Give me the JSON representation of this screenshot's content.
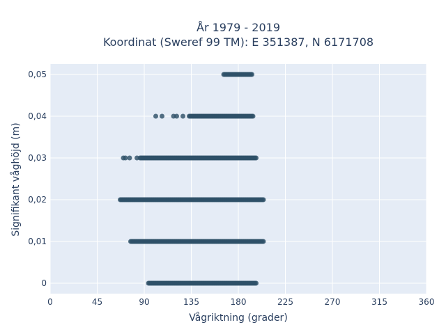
{
  "chart_data": {
    "type": "scatter",
    "title_line1": "År 1979 - 2019",
    "title_line2": "Koordinat (Sweref 99 TM): E 351387, N 6171708",
    "xlabel": "Vågriktning (grader)",
    "ylabel": "Signifikant våghöjd (m)",
    "xlim": [
      0,
      360
    ],
    "ylim": [
      -0.0025,
      0.0525
    ],
    "x_ticks": [
      0,
      45,
      90,
      135,
      180,
      225,
      270,
      315,
      360
    ],
    "x_tick_labels": [
      "0",
      "45",
      "90",
      "135",
      "180",
      "225",
      "270",
      "315",
      "360"
    ],
    "y_ticks": [
      0,
      0.01,
      0.02,
      0.03,
      0.04,
      0.05
    ],
    "y_tick_labels": [
      "0",
      "0,01",
      "0,02",
      "0,03",
      "0,04",
      "0,05"
    ],
    "grid": true,
    "series": [
      {
        "marker_color": "#2e5068",
        "bands": [
          {
            "y": 0.0,
            "x_min": 94,
            "x_max": 197,
            "isolated_x": []
          },
          {
            "y": 0.01,
            "x_min": 77,
            "x_max": 204,
            "isolated_x": []
          },
          {
            "y": 0.02,
            "x_min": 67,
            "x_max": 204,
            "isolated_x": []
          },
          {
            "y": 0.03,
            "x_min": 86,
            "x_max": 197,
            "isolated_x": [
              70,
              72,
              76,
              83
            ]
          },
          {
            "y": 0.04,
            "x_min": 133,
            "x_max": 194,
            "isolated_x": [
              101,
              107,
              118,
              121,
              127
            ]
          },
          {
            "y": 0.05,
            "x_min": 166,
            "x_max": 193,
            "isolated_x": []
          }
        ]
      }
    ]
  }
}
